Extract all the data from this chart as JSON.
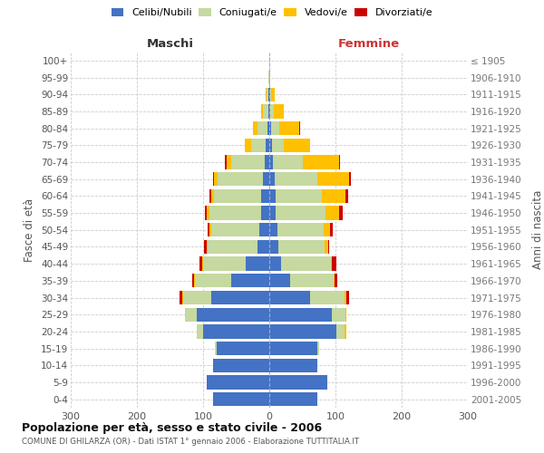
{
  "age_groups": [
    "0-4",
    "5-9",
    "10-14",
    "15-19",
    "20-24",
    "25-29",
    "30-34",
    "35-39",
    "40-44",
    "45-49",
    "50-54",
    "55-59",
    "60-64",
    "65-69",
    "70-74",
    "75-79",
    "80-84",
    "85-89",
    "90-94",
    "95-99",
    "100+"
  ],
  "birth_years": [
    "2001-2005",
    "1996-2000",
    "1991-1995",
    "1986-1990",
    "1981-1985",
    "1976-1980",
    "1971-1975",
    "1966-1970",
    "1961-1965",
    "1956-1960",
    "1951-1955",
    "1946-1950",
    "1941-1945",
    "1936-1940",
    "1931-1935",
    "1926-1930",
    "1921-1925",
    "1916-1920",
    "1911-1915",
    "1906-1910",
    "≤ 1905"
  ],
  "male_celibi": [
    85,
    95,
    85,
    80,
    100,
    110,
    88,
    58,
    35,
    18,
    15,
    12,
    12,
    10,
    7,
    5,
    3,
    2,
    1,
    0,
    0
  ],
  "male_coniugati": [
    0,
    0,
    0,
    2,
    10,
    18,
    42,
    55,
    65,
    75,
    72,
    78,
    72,
    68,
    50,
    22,
    15,
    8,
    3,
    1,
    0
  ],
  "male_vedovi": [
    0,
    0,
    0,
    0,
    0,
    0,
    1,
    1,
    1,
    2,
    4,
    5,
    4,
    5,
    8,
    10,
    6,
    3,
    1,
    0,
    0
  ],
  "male_divorziati": [
    0,
    0,
    0,
    0,
    0,
    0,
    4,
    2,
    4,
    4,
    2,
    2,
    2,
    2,
    2,
    0,
    0,
    0,
    0,
    0,
    0
  ],
  "female_nubili": [
    73,
    88,
    73,
    73,
    102,
    95,
    62,
    32,
    18,
    14,
    12,
    10,
    10,
    8,
    5,
    4,
    3,
    2,
    1,
    0,
    0
  ],
  "female_coniugate": [
    0,
    0,
    0,
    2,
    12,
    20,
    52,
    65,
    75,
    70,
    70,
    75,
    70,
    65,
    45,
    18,
    12,
    5,
    2,
    0,
    0
  ],
  "female_vedove": [
    0,
    0,
    0,
    0,
    2,
    2,
    2,
    2,
    2,
    5,
    10,
    20,
    35,
    48,
    55,
    40,
    30,
    15,
    5,
    1,
    0
  ],
  "female_divorziate": [
    0,
    0,
    0,
    0,
    0,
    0,
    4,
    4,
    6,
    2,
    4,
    6,
    4,
    2,
    2,
    0,
    1,
    0,
    0,
    0,
    0
  ],
  "colors_celibi": "#4472c4",
  "colors_coniugati": "#c5d9a0",
  "colors_vedovi": "#ffc000",
  "colors_divorziati": "#cc0000",
  "title": "Popolazione per età, sesso e stato civile - 2006",
  "subtitle": "COMUNE DI GHILARZA (OR) - Dati ISTAT 1° gennaio 2006 - Elaborazione TUTTITALIA.IT",
  "ylabel_left": "Fasce di età",
  "ylabel_right": "Anni di nascita",
  "label_maschi": "Maschi",
  "label_femmine": "Femmine",
  "legend_labels": [
    "Celibi/Nubili",
    "Coniugati/e",
    "Vedovi/e",
    "Divorziati/e"
  ],
  "xlim": 300,
  "bg_color": "#ffffff",
  "grid_color": "#cccccc"
}
